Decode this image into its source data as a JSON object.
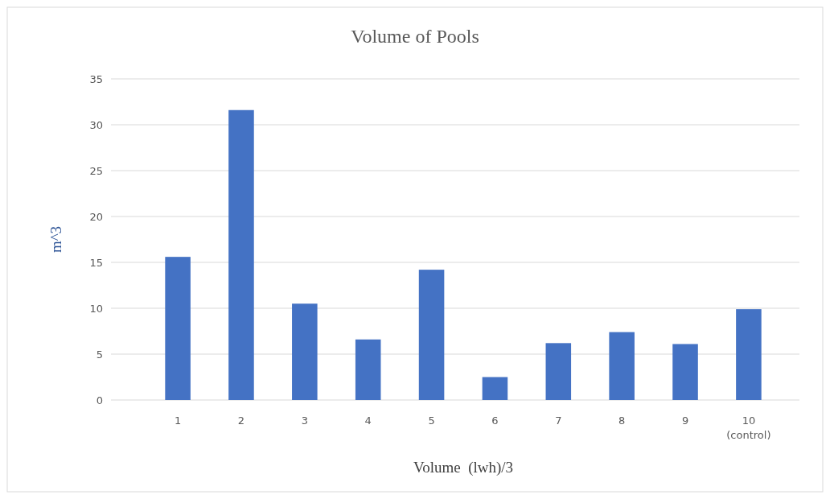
{
  "chart_data": {
    "type": "bar",
    "title": "Volume of Pools",
    "xlabel": "Volume  (lwh)/3",
    "ylabel": "m^3",
    "categories": [
      "1",
      "2",
      "3",
      "4",
      "5",
      "6",
      "7",
      "8",
      "9",
      "10\n(control)"
    ],
    "values": [
      15.6,
      31.6,
      10.5,
      6.6,
      14.2,
      2.5,
      6.2,
      7.4,
      6.1,
      9.9
    ],
    "color": "#4472c4",
    "ylim": [
      0,
      35
    ],
    "yticks": [
      0,
      5,
      10,
      15,
      20,
      25,
      30,
      35
    ],
    "grid": "y"
  }
}
